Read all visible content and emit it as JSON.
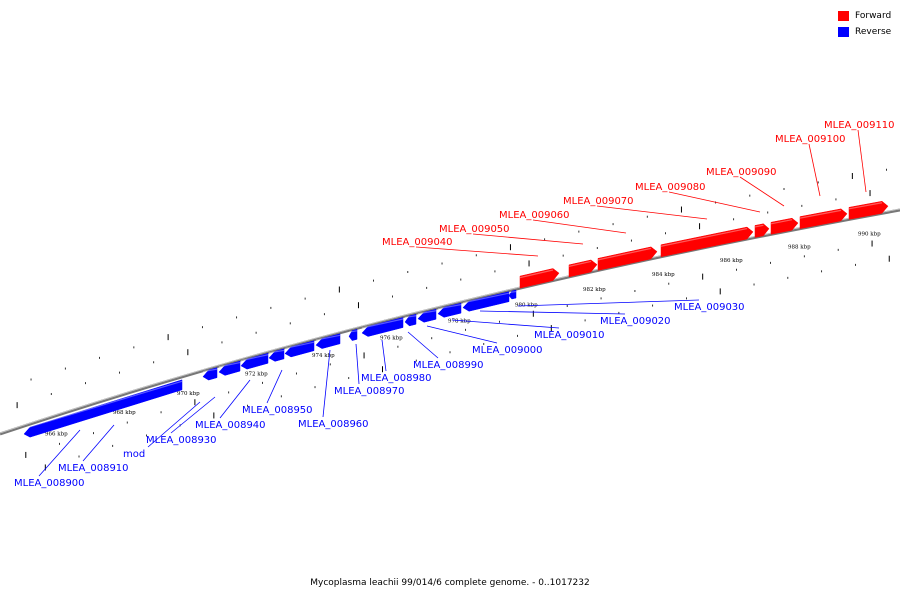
{
  "legend": [
    {
      "label": "Forward",
      "color": "#ff0000"
    },
    {
      "label": "Reverse",
      "color": "#0000ff"
    }
  ],
  "caption": "Mycoplasma leachii 99/014/6 complete genome. - 0..1017232",
  "colors": {
    "forward": "#ff0000",
    "reverse": "#0000ff",
    "backbone": "#777777"
  },
  "axis": {
    "unit": "kbp",
    "tick_labels": [
      "966 kbp",
      "968 kbp",
      "970 kbp",
      "972 kbp",
      "974 kbp",
      "976 kbp",
      "978 kbp",
      "980 kbp",
      "982 kbp",
      "984 kbp",
      "986 kbp",
      "988 kbp",
      "990 kbp"
    ]
  },
  "genes": [
    {
      "name": "MLEA_008900",
      "strand": "reverse"
    },
    {
      "name": "MLEA_008910",
      "strand": "reverse"
    },
    {
      "name": "mod",
      "strand": "reverse"
    },
    {
      "name": "MLEA_008930",
      "strand": "reverse"
    },
    {
      "name": "MLEA_008940",
      "strand": "reverse"
    },
    {
      "name": "MLEA_008950",
      "strand": "reverse"
    },
    {
      "name": "MLEA_008960",
      "strand": "reverse"
    },
    {
      "name": "MLEA_008970",
      "strand": "reverse"
    },
    {
      "name": "MLEA_008980",
      "strand": "reverse"
    },
    {
      "name": "MLEA_008990",
      "strand": "reverse"
    },
    {
      "name": "MLEA_009000",
      "strand": "reverse"
    },
    {
      "name": "MLEA_009010",
      "strand": "reverse"
    },
    {
      "name": "MLEA_009020",
      "strand": "reverse"
    },
    {
      "name": "MLEA_009030",
      "strand": "reverse"
    },
    {
      "name": "MLEA_009040",
      "strand": "forward"
    },
    {
      "name": "MLEA_009050",
      "strand": "forward"
    },
    {
      "name": "MLEA_009060",
      "strand": "forward"
    },
    {
      "name": "MLEA_009070",
      "strand": "forward"
    },
    {
      "name": "MLEA_009080",
      "strand": "forward"
    },
    {
      "name": "MLEA_009090",
      "strand": "forward"
    },
    {
      "name": "MLEA_009100",
      "strand": "forward"
    },
    {
      "name": "MLEA_009110",
      "strand": "forward"
    }
  ]
}
